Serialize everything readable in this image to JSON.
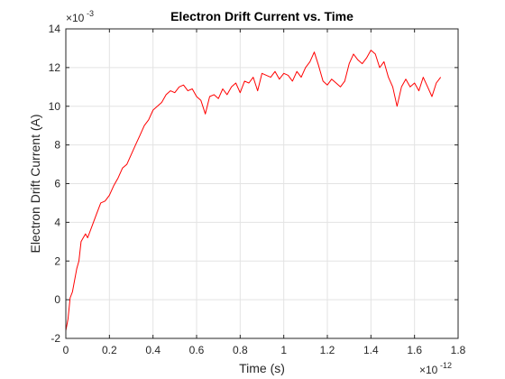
{
  "chart_data": {
    "type": "line",
    "title": "Electron Drift Current vs. Time",
    "xlabel": "Time (s)",
    "ylabel": "Electron Drift Current (A)",
    "x_exponent": {
      "base": "×10",
      "power": "-12"
    },
    "y_exponent": {
      "base": "×10",
      "power": "-3"
    },
    "xlim": [
      0,
      1.8
    ],
    "ylim": [
      -2,
      14
    ],
    "x_ticks": [
      0,
      0.2,
      0.4,
      0.6,
      0.8,
      1,
      1.2,
      1.4,
      1.6,
      1.8
    ],
    "y_ticks": [
      -2,
      0,
      2,
      4,
      6,
      8,
      10,
      12,
      14
    ],
    "x_tick_labels": [
      "0",
      "0.2",
      "0.4",
      "0.6",
      "0.8",
      "1",
      "1.2",
      "1.4",
      "1.6",
      "1.8"
    ],
    "y_tick_labels": [
      "-2",
      "0",
      "2",
      "4",
      "6",
      "8",
      "10",
      "12",
      "14"
    ],
    "grid": true,
    "line_color": "#ff0000",
    "series": [
      {
        "x": [
          0,
          0.01,
          0.02,
          0.03,
          0.04,
          0.05,
          0.06,
          0.07,
          0.08,
          0.09,
          0.1,
          0.12,
          0.14,
          0.16,
          0.18,
          0.2,
          0.22,
          0.24,
          0.26,
          0.28,
          0.3,
          0.32,
          0.34,
          0.36,
          0.38,
          0.4,
          0.42,
          0.44,
          0.46,
          0.48,
          0.5,
          0.52,
          0.54,
          0.56,
          0.58,
          0.6,
          0.62,
          0.64,
          0.66,
          0.68,
          0.7,
          0.72,
          0.74,
          0.76,
          0.78,
          0.8,
          0.82,
          0.84,
          0.86,
          0.88,
          0.9,
          0.92,
          0.94,
          0.96,
          0.98,
          1.0,
          1.02,
          1.04,
          1.06,
          1.08,
          1.1,
          1.12,
          1.14,
          1.16,
          1.18,
          1.2,
          1.22,
          1.24,
          1.26,
          1.28,
          1.3,
          1.32,
          1.34,
          1.36,
          1.38,
          1.4,
          1.42,
          1.44,
          1.46,
          1.48,
          1.5,
          1.52,
          1.54,
          1.56,
          1.58,
          1.6,
          1.62,
          1.64,
          1.66,
          1.68,
          1.7,
          1.72
        ],
        "y": [
          -1.6,
          -1.0,
          0.1,
          0.4,
          1.0,
          1.6,
          2.0,
          3.0,
          3.2,
          3.4,
          3.2,
          3.8,
          4.4,
          5.0,
          5.1,
          5.4,
          5.9,
          6.3,
          6.8,
          7.0,
          7.5,
          8.0,
          8.5,
          9.0,
          9.3,
          9.8,
          10.0,
          10.2,
          10.6,
          10.8,
          10.7,
          11.0,
          11.1,
          10.8,
          10.9,
          10.5,
          10.3,
          9.6,
          10.5,
          10.6,
          10.4,
          10.9,
          10.6,
          11.0,
          11.2,
          10.7,
          11.3,
          11.2,
          11.5,
          10.8,
          11.7,
          11.6,
          11.5,
          11.8,
          11.4,
          11.7,
          11.6,
          11.3,
          11.8,
          11.5,
          12.0,
          12.3,
          12.8,
          12.1,
          11.3,
          11.1,
          11.4,
          11.2,
          11.0,
          11.3,
          12.2,
          12.7,
          12.4,
          12.2,
          12.5,
          12.9,
          12.7,
          12.0,
          12.3,
          11.5,
          11.0,
          10.0,
          11.0,
          11.4,
          11.0,
          11.2,
          10.8,
          11.5,
          11.0,
          10.5,
          11.2,
          11.5
        ]
      }
    ]
  }
}
